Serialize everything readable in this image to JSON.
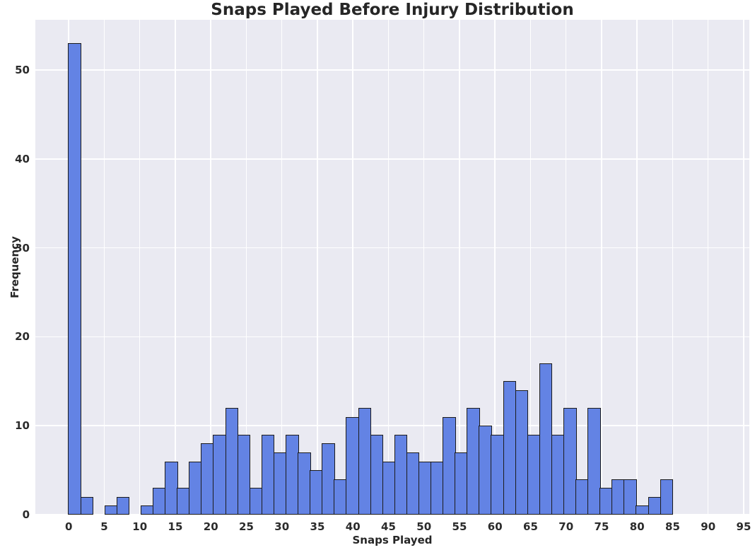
{
  "chart_data": {
    "type": "bar",
    "subtype": "histogram",
    "title": "Snaps Played Before Injury Distribution",
    "xlabel": "Snaps Played",
    "ylabel": "Frequency",
    "bin_start": 0,
    "bin_width": 1.7,
    "bin_range": [
      0,
      85
    ],
    "counts": [
      53,
      2,
      0,
      1,
      2,
      0,
      1,
      3,
      6,
      3,
      6,
      8,
      9,
      12,
      9,
      3,
      9,
      7,
      9,
      7,
      5,
      8,
      4,
      11,
      12,
      9,
      6,
      9,
      7,
      6,
      6,
      11,
      7,
      12,
      10,
      9,
      15,
      14,
      9,
      17,
      9,
      12,
      4,
      12,
      3,
      4,
      4,
      1,
      2,
      4
    ],
    "xticks": [
      0,
      5,
      10,
      15,
      20,
      25,
      30,
      35,
      40,
      45,
      50,
      55,
      60,
      65,
      70,
      75,
      80,
      85,
      90,
      95
    ],
    "yticks": [
      0,
      10,
      20,
      30,
      40,
      50
    ],
    "xlim": [
      -4.7,
      95.8
    ],
    "ylim": [
      0,
      55.65
    ],
    "grid": true,
    "legend_position": "none",
    "colors": {
      "bar_fill": "#6383e4",
      "bar_edge": "#1c1c1c",
      "plot_background": "#eaeaf2",
      "grid": "#ffffff",
      "text": "#262626",
      "figure_background": "#ffffff"
    }
  }
}
